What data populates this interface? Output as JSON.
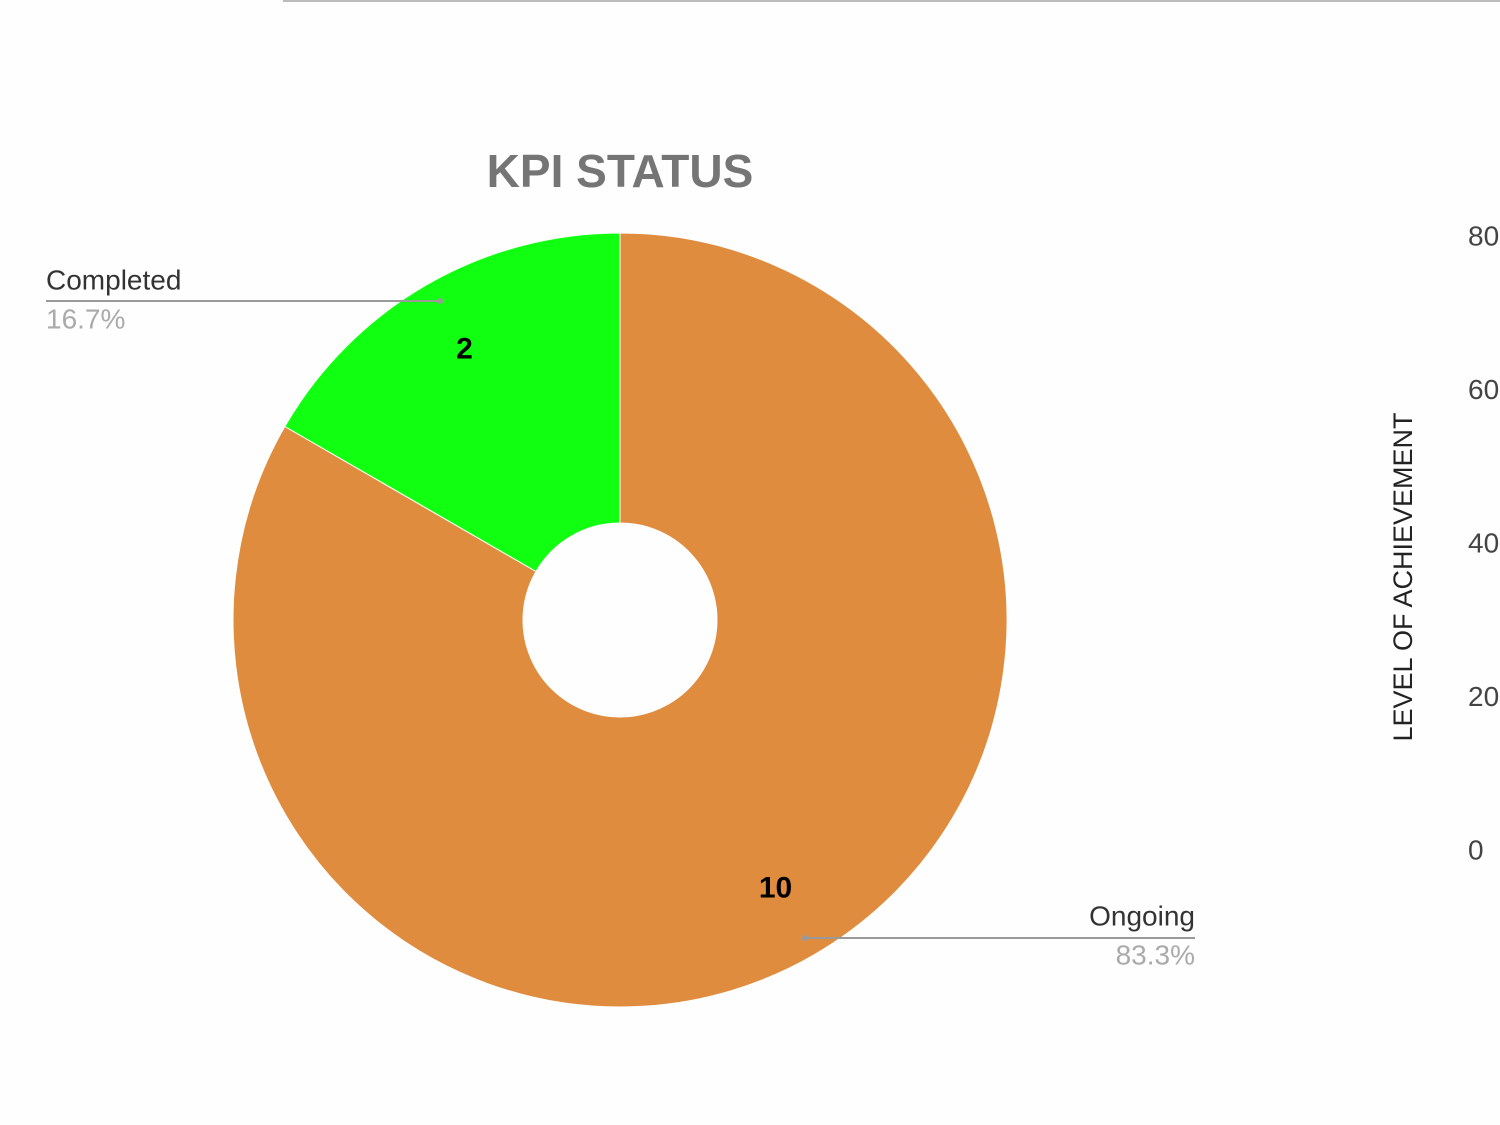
{
  "chart_data": [
    {
      "type": "pie",
      "title": "KPI STATUS",
      "donut": true,
      "categories": [
        "Ongoing",
        "Completed"
      ],
      "values": [
        10,
        2
      ],
      "percent_labels": [
        "83.3%",
        "16.7%"
      ],
      "colors": [
        "#e08c3e",
        "#11ff11"
      ]
    },
    {
      "type": "bar",
      "y_label": "LEVEL OF ACHIEVEMENT",
      "ylim": [
        0,
        80
      ],
      "yticks": [
        0,
        20,
        40,
        60,
        80
      ]
    }
  ]
}
